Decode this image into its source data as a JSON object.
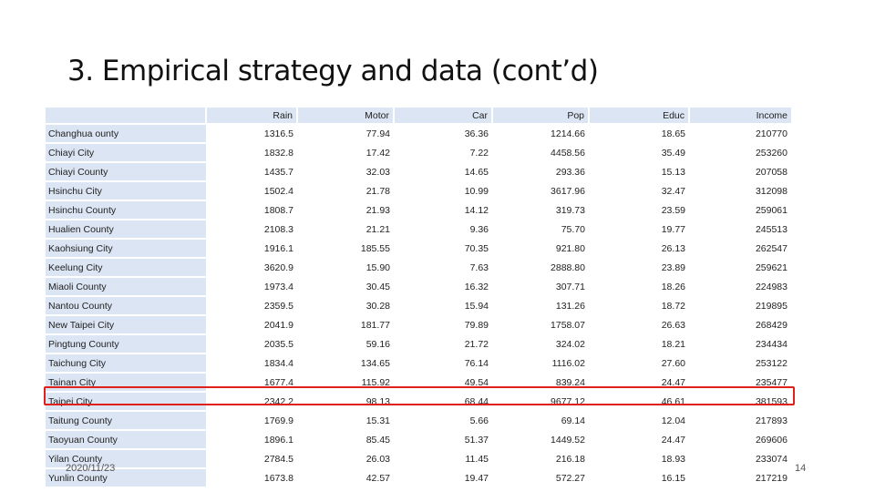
{
  "slide": {
    "title": "3. Empirical strategy and data (cont’d)",
    "date": "2020/11/23",
    "page_number": "14"
  },
  "table": {
    "headers": [
      "",
      "Rain",
      "Motor",
      "Car",
      "Pop",
      "Educ",
      "Income"
    ],
    "rows": [
      [
        "Changhua ounty",
        "1316.5",
        "77.94",
        "36.36",
        "1214.66",
        "18.65",
        "210770"
      ],
      [
        "Chiayi City",
        "1832.8",
        "17.42",
        "7.22",
        "4458.56",
        "35.49",
        "253260"
      ],
      [
        "Chiayi County",
        "1435.7",
        "32.03",
        "14.65",
        "293.36",
        "15.13",
        "207058"
      ],
      [
        "Hsinchu City",
        "1502.4",
        "21.78",
        "10.99",
        "3617.96",
        "32.47",
        "312098"
      ],
      [
        "Hsinchu County",
        "1808.7",
        "21.93",
        "14.12",
        "319.73",
        "23.59",
        "259061"
      ],
      [
        "Hualien County",
        "2108.3",
        "21.21",
        "9.36",
        "75.70",
        "19.77",
        "245513"
      ],
      [
        "Kaohsiung City",
        "1916.1",
        "185.55",
        "70.35",
        "921.80",
        "26.13",
        "262547"
      ],
      [
        "Keelung City",
        "3620.9",
        "15.90",
        "7.63",
        "2888.80",
        "23.89",
        "259621"
      ],
      [
        "Miaoli County",
        "1973.4",
        "30.45",
        "16.32",
        "307.71",
        "18.26",
        "224983"
      ],
      [
        "Nantou County",
        "2359.5",
        "30.28",
        "15.94",
        "131.26",
        "18.72",
        "219895"
      ],
      [
        "New Taipei City",
        "2041.9",
        "181.77",
        "79.89",
        "1758.07",
        "26.63",
        "268429"
      ],
      [
        "Pingtung County",
        "2035.5",
        "59.16",
        "21.72",
        "324.02",
        "18.21",
        "234434"
      ],
      [
        "Taichung City",
        "1834.4",
        "134.65",
        "76.14",
        "1116.02",
        "27.60",
        "253122"
      ],
      [
        "Tainan City",
        "1677.4",
        "115.92",
        "49.54",
        "839.24",
        "24.47",
        "235477"
      ],
      [
        "Taipei City",
        "2342.2",
        "98.13",
        "68.44",
        "9677.12",
        "46.61",
        "381593"
      ],
      [
        "Taitung County",
        "1769.9",
        "15.31",
        "5.66",
        "69.14",
        "12.04",
        "217893"
      ],
      [
        "Taoyuan County",
        "1896.1",
        "85.45",
        "51.37",
        "1449.52",
        "24.47",
        "269606"
      ],
      [
        "Yilan County",
        "2784.5",
        "26.03",
        "11.45",
        "216.18",
        "18.93",
        "233074"
      ],
      [
        "Yunlin County",
        "1673.8",
        "42.57",
        "19.47",
        "572.27",
        "16.15",
        "217219"
      ]
    ],
    "highlight_color": "#e0201b",
    "header_fill": "#dce5f3"
  }
}
